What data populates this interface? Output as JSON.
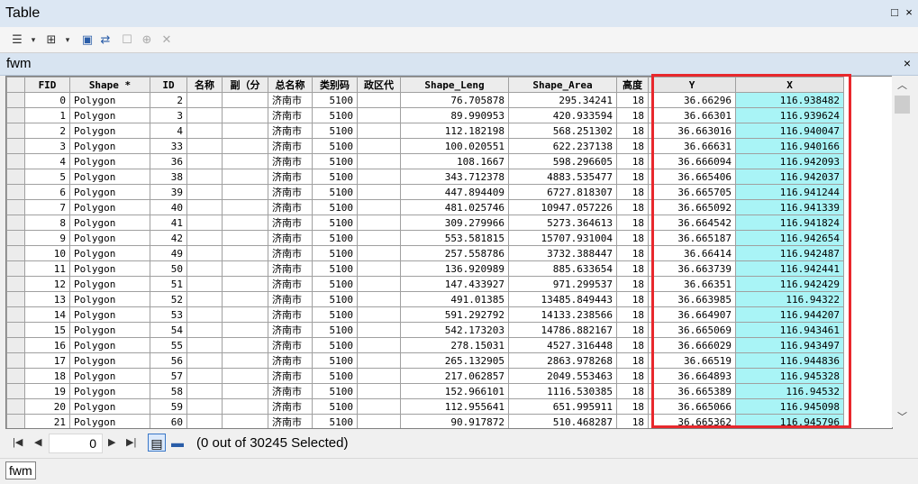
{
  "window": {
    "title": "Table"
  },
  "table_tab": {
    "name": "fwm"
  },
  "columns": [
    "FID",
    "Shape *",
    "ID",
    "名称",
    "副（分",
    "总名称",
    "类别码",
    "政区代",
    "Shape_Leng",
    "Shape_Area",
    "高度",
    "Y",
    "X"
  ],
  "rows": [
    [
      "0",
      "Polygon",
      "2",
      "",
      "",
      "济南市",
      "5100",
      "",
      "76.705878",
      "295.34241",
      "18",
      "36.66296",
      "116.938482"
    ],
    [
      "1",
      "Polygon",
      "3",
      "",
      "",
      "济南市",
      "5100",
      "",
      "89.990953",
      "420.933594",
      "18",
      "36.66301",
      "116.939624"
    ],
    [
      "2",
      "Polygon",
      "4",
      "",
      "",
      "济南市",
      "5100",
      "",
      "112.182198",
      "568.251302",
      "18",
      "36.663016",
      "116.940047"
    ],
    [
      "3",
      "Polygon",
      "33",
      "",
      "",
      "济南市",
      "5100",
      "",
      "100.020551",
      "622.237138",
      "18",
      "36.66631",
      "116.940166"
    ],
    [
      "4",
      "Polygon",
      "36",
      "",
      "",
      "济南市",
      "5100",
      "",
      "108.1667",
      "598.296605",
      "18",
      "36.666094",
      "116.942093"
    ],
    [
      "5",
      "Polygon",
      "38",
      "",
      "",
      "济南市",
      "5100",
      "",
      "343.712378",
      "4883.535477",
      "18",
      "36.665406",
      "116.942037"
    ],
    [
      "6",
      "Polygon",
      "39",
      "",
      "",
      "济南市",
      "5100",
      "",
      "447.894409",
      "6727.818307",
      "18",
      "36.665705",
      "116.941244"
    ],
    [
      "7",
      "Polygon",
      "40",
      "",
      "",
      "济南市",
      "5100",
      "",
      "481.025746",
      "10947.057226",
      "18",
      "36.665092",
      "116.941339"
    ],
    [
      "8",
      "Polygon",
      "41",
      "",
      "",
      "济南市",
      "5100",
      "",
      "309.279966",
      "5273.364613",
      "18",
      "36.664542",
      "116.941824"
    ],
    [
      "9",
      "Polygon",
      "42",
      "",
      "",
      "济南市",
      "5100",
      "",
      "553.581815",
      "15707.931004",
      "18",
      "36.665187",
      "116.942654"
    ],
    [
      "10",
      "Polygon",
      "49",
      "",
      "",
      "济南市",
      "5100",
      "",
      "257.558786",
      "3732.388447",
      "18",
      "36.66414",
      "116.942487"
    ],
    [
      "11",
      "Polygon",
      "50",
      "",
      "",
      "济南市",
      "5100",
      "",
      "136.920989",
      "885.633654",
      "18",
      "36.663739",
      "116.942441"
    ],
    [
      "12",
      "Polygon",
      "51",
      "",
      "",
      "济南市",
      "5100",
      "",
      "147.433927",
      "971.299537",
      "18",
      "36.66351",
      "116.942429"
    ],
    [
      "13",
      "Polygon",
      "52",
      "",
      "",
      "济南市",
      "5100",
      "",
      "491.01385",
      "13485.849443",
      "18",
      "36.663985",
      "116.94322"
    ],
    [
      "14",
      "Polygon",
      "53",
      "",
      "",
      "济南市",
      "5100",
      "",
      "591.292792",
      "14133.238566",
      "18",
      "36.664907",
      "116.944207"
    ],
    [
      "15",
      "Polygon",
      "54",
      "",
      "",
      "济南市",
      "5100",
      "",
      "542.173203",
      "14786.882167",
      "18",
      "36.665069",
      "116.943461"
    ],
    [
      "16",
      "Polygon",
      "55",
      "",
      "",
      "济南市",
      "5100",
      "",
      "278.15031",
      "4527.316448",
      "18",
      "36.666029",
      "116.943497"
    ],
    [
      "17",
      "Polygon",
      "56",
      "",
      "",
      "济南市",
      "5100",
      "",
      "265.132905",
      "2863.978268",
      "18",
      "36.66519",
      "116.944836"
    ],
    [
      "18",
      "Polygon",
      "57",
      "",
      "",
      "济南市",
      "5100",
      "",
      "217.062857",
      "2049.553463",
      "18",
      "36.664893",
      "116.945328"
    ],
    [
      "19",
      "Polygon",
      "58",
      "",
      "",
      "济南市",
      "5100",
      "",
      "152.966101",
      "1116.530385",
      "18",
      "36.665389",
      "116.94532"
    ],
    [
      "20",
      "Polygon",
      "59",
      "",
      "",
      "济南市",
      "5100",
      "",
      "112.955641",
      "651.995911",
      "18",
      "36.665066",
      "116.945098"
    ],
    [
      "21",
      "Polygon",
      "60",
      "",
      "",
      "济南市",
      "5100",
      "",
      "90.917872",
      "510.468287",
      "18",
      "36.665362",
      "116.945796"
    ]
  ],
  "navigation": {
    "current_record": "0",
    "selection_status": "(0 out of 30245 Selected)"
  },
  "status_tab": {
    "name": "fwm"
  },
  "colors": {
    "highlight_column": "#a9f4f6",
    "red_frame": "#e8282d"
  },
  "icons": [
    "table-options-icon",
    "related-tables-icon",
    "select-by-attributes-icon",
    "switch-selection-icon",
    "clear-selection-icon",
    "zoom-to-selected-icon",
    "delete-selected-icon"
  ]
}
